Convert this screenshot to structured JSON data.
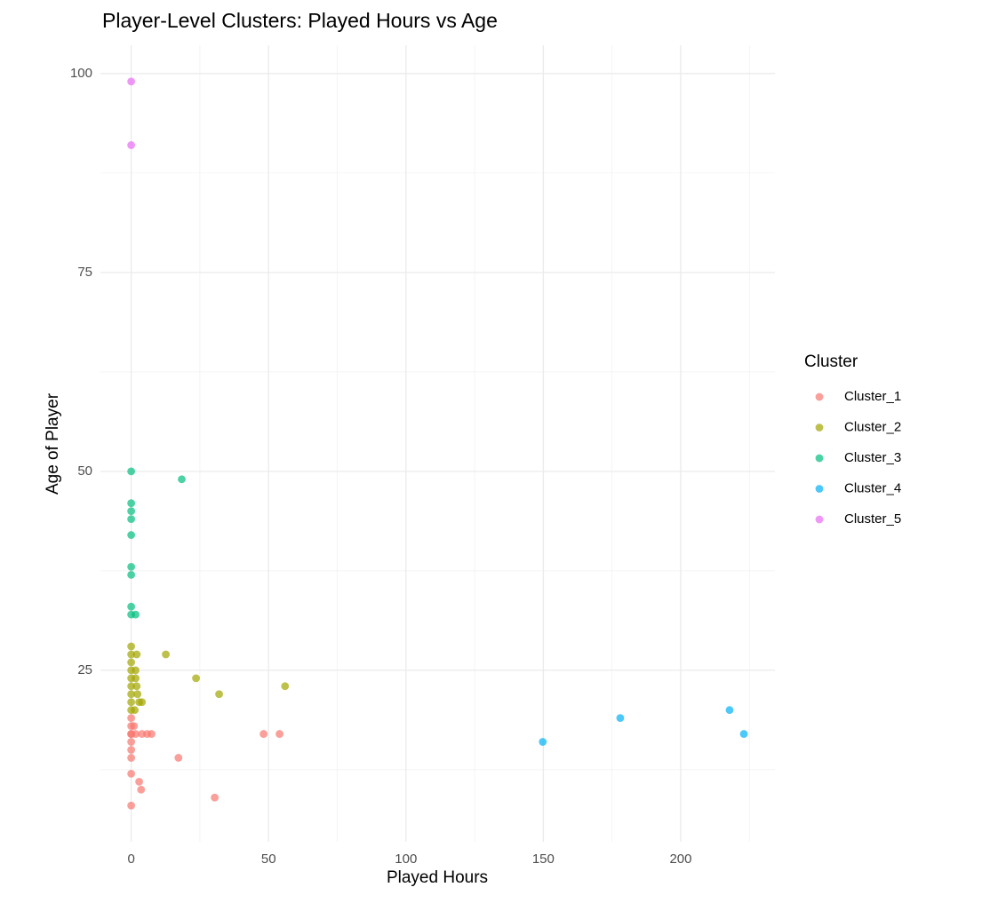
{
  "chart_data": {
    "type": "scatter",
    "title": "Player-Level Clusters: Played Hours vs Age",
    "x_label": "Played Hours",
    "y_label": "Age of Player",
    "legend_title": "Cluster",
    "legend_position": "right",
    "grid": true,
    "xlim": [
      -11.2,
      234.3
    ],
    "ylim": [
      3.45,
      103.55
    ],
    "xticks": [
      0,
      50,
      100,
      150,
      200
    ],
    "yticks": [
      25,
      50,
      75,
      100
    ],
    "x_minor_grid": [
      25,
      75,
      125,
      175,
      225
    ],
    "y_minor_grid": [
      12.5,
      37.5,
      62.5,
      87.5
    ],
    "series": [
      {
        "name": "Cluster_1",
        "color": "#F8766D",
        "x": [
          0,
          0,
          0,
          0,
          0,
          0,
          0,
          0,
          0,
          2.9,
          3.6,
          30.4,
          17.2,
          48.2,
          54,
          1.6,
          3.9,
          5.8,
          7.4,
          1
        ],
        "y": [
          8,
          12,
          14,
          15,
          16,
          17,
          18,
          19,
          17,
          11,
          10,
          9,
          14,
          17,
          17,
          17,
          17,
          17,
          17,
          18
        ]
      },
      {
        "name": "Cluster_2",
        "color": "#A3A500",
        "x": [
          0,
          0,
          0,
          0,
          0,
          0,
          0,
          0,
          0,
          12.6,
          23.6,
          32,
          56,
          2,
          1.6,
          2.3,
          2.9,
          3.9,
          1.3,
          1.6,
          2
        ],
        "y": [
          20,
          21,
          22,
          23,
          24,
          25,
          26,
          27,
          28,
          27,
          24,
          22,
          23,
          27,
          25,
          22,
          21,
          21,
          20,
          24,
          23
        ]
      },
      {
        "name": "Cluster_3",
        "color": "#00BF7D",
        "x": [
          0,
          0,
          0,
          0,
          0,
          0,
          0,
          0,
          0,
          1.6,
          18.4
        ],
        "y": [
          50,
          46,
          45,
          44,
          42,
          38,
          37,
          33,
          32,
          32,
          49
        ]
      },
      {
        "name": "Cluster_4",
        "color": "#00B0F6",
        "x": [
          149.8,
          178,
          217.8,
          223
        ],
        "y": [
          16,
          19,
          20,
          17
        ]
      },
      {
        "name": "Cluster_5",
        "color": "#E76BF3",
        "x": [
          0,
          0
        ],
        "y": [
          99,
          91
        ]
      }
    ]
  }
}
